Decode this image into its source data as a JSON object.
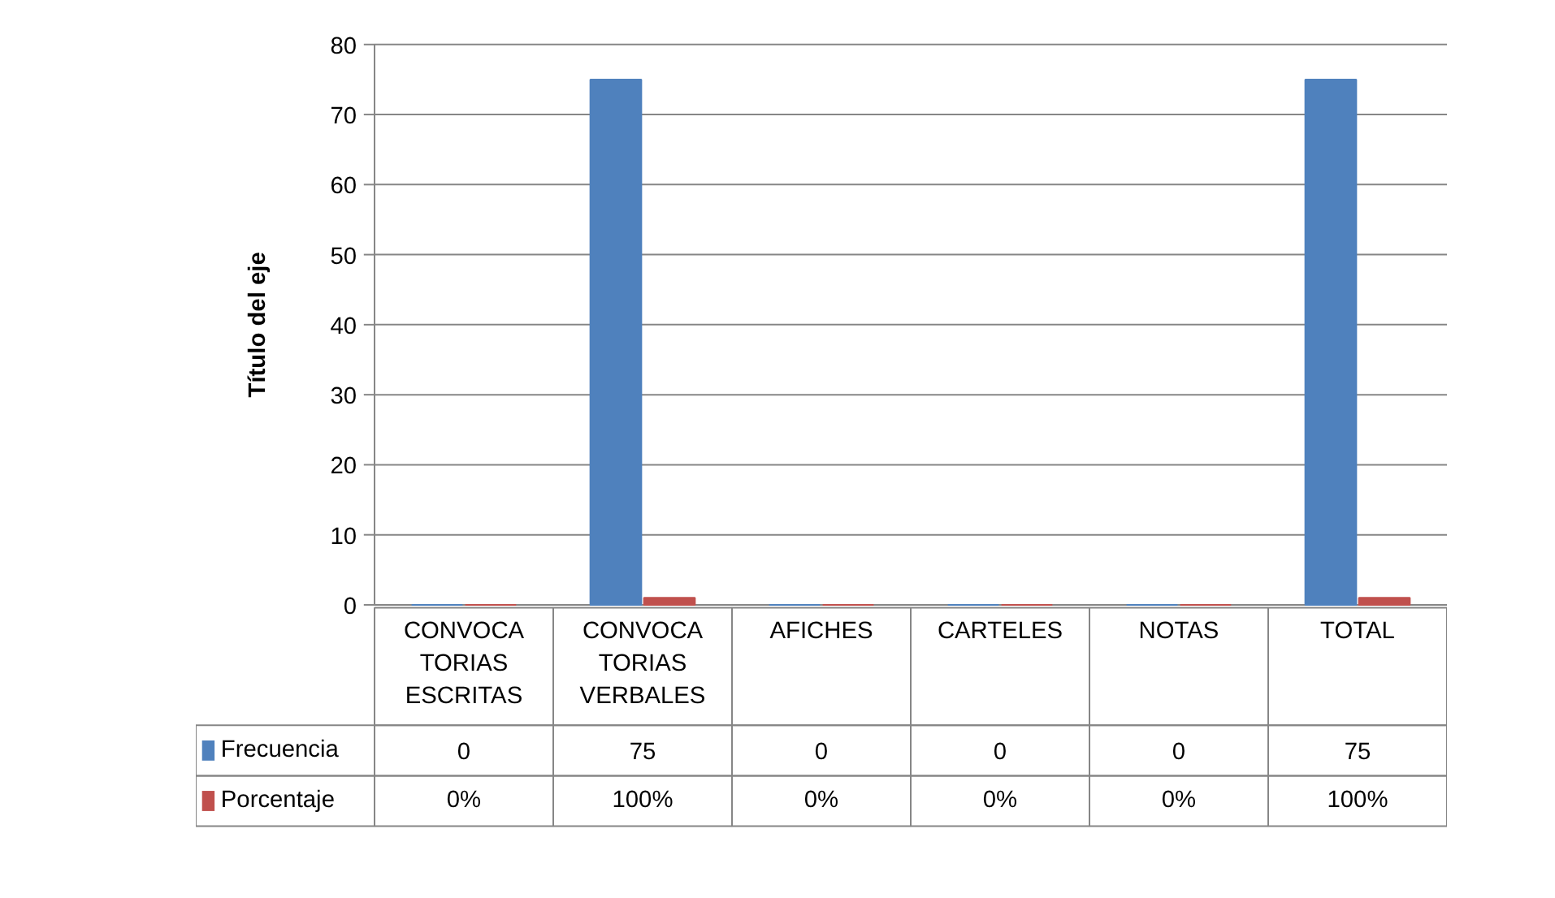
{
  "chart_data": {
    "type": "bar",
    "ylabel": "Título del eje",
    "categories": [
      "CONVOCA TORIAS ESCRITAS",
      "CONVOCA TORIAS VERBALES",
      "AFICHES",
      "CARTELES",
      "NOTAS",
      "TOTAL"
    ],
    "series": [
      {
        "name": "Frecuencia",
        "color": "#4f81bd",
        "values": [
          0,
          75,
          0,
          0,
          0,
          75
        ]
      },
      {
        "name": "Porcentaje",
        "color": "#c0504d",
        "values": [
          0,
          1,
          0,
          0,
          0,
          1
        ],
        "value_labels": [
          "0%",
          "100%",
          "0%",
          "0%",
          "0%",
          "100%"
        ]
      }
    ],
    "ylim": [
      0,
      80
    ],
    "yticks": [
      0,
      10,
      20,
      30,
      40,
      50,
      60,
      70,
      80
    ],
    "grid": "y",
    "legend": "bottom left",
    "data_labels": true
  }
}
